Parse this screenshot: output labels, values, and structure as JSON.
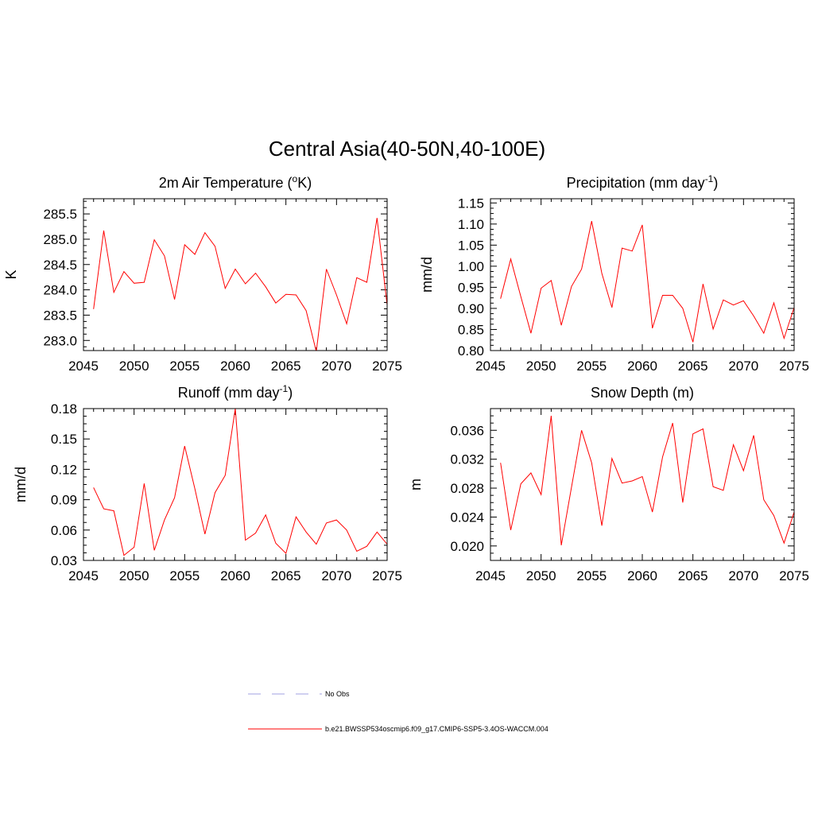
{
  "title": "Central Asia(40-50N,40-100E)",
  "colors": {
    "series": "#ff0000",
    "obs": "#a0a0e0",
    "axis": "#000000"
  },
  "legend": {
    "items": [
      {
        "label": "No Obs",
        "color": "#a0a0e0",
        "style": "dashed"
      },
      {
        "label": "b.e21.BWSSP534oscmip6.f09_g17.CMIP6-SSP5-3.4OS-WACCM.004",
        "color": "#ff0000",
        "style": "solid"
      }
    ]
  },
  "chart_data": [
    {
      "type": "line",
      "title": "2m Air Temperature (",
      "title_sup": "o",
      "title_after": "K)",
      "xlabel": "",
      "ylabel": "K",
      "xlim": [
        2045,
        2075
      ],
      "ylim": [
        282.8,
        285.8
      ],
      "xticks": [
        2045,
        2050,
        2055,
        2060,
        2065,
        2070,
        2075
      ],
      "yticks": [
        283.0,
        283.5,
        284.0,
        284.5,
        285.0,
        285.5
      ],
      "ytick_labels": [
        "283.0",
        "283.5",
        "284.0",
        "284.5",
        "285.0",
        "285.5"
      ],
      "series": [
        {
          "name": "b.e21.BWSSP534oscmip6.f09_g17.CMIP6-SSP5-3.4OS-WACCM.004",
          "x": [
            2046,
            2047,
            2048,
            2049,
            2050,
            2051,
            2052,
            2053,
            2054,
            2055,
            2056,
            2057,
            2058,
            2059,
            2060,
            2061,
            2062,
            2063,
            2064,
            2065,
            2066,
            2067,
            2068,
            2069,
            2070,
            2071,
            2072,
            2073,
            2074,
            2075
          ],
          "values": [
            283.62,
            285.17,
            283.95,
            284.36,
            284.13,
            284.15,
            284.99,
            284.67,
            283.81,
            284.89,
            284.7,
            285.13,
            284.86,
            284.03,
            284.41,
            284.12,
            284.33,
            284.06,
            283.74,
            283.91,
            283.9,
            283.59,
            282.78,
            284.41,
            283.9,
            283.33,
            284.24,
            284.15,
            285.42,
            283.7
          ]
        }
      ]
    },
    {
      "type": "line",
      "title": "Precipitation (mm day",
      "title_sup": "-1",
      "title_after": ")",
      "xlabel": "",
      "ylabel": "mm/d",
      "xlim": [
        2045,
        2075
      ],
      "ylim": [
        0.8,
        1.16
      ],
      "xticks": [
        2045,
        2050,
        2055,
        2060,
        2065,
        2070,
        2075
      ],
      "yticks": [
        0.8,
        0.85,
        0.9,
        0.95,
        1.0,
        1.05,
        1.1,
        1.15
      ],
      "ytick_labels": [
        "0.80",
        "0.85",
        "0.90",
        "0.95",
        "1.00",
        "1.05",
        "1.10",
        "1.15"
      ],
      "series": [
        {
          "name": "b.e21.BWSSP534oscmip6.f09_g17.CMIP6-SSP5-3.4OS-WACCM.004",
          "x": [
            2046,
            2047,
            2048,
            2049,
            2050,
            2051,
            2052,
            2053,
            2054,
            2055,
            2056,
            2057,
            2058,
            2059,
            2060,
            2061,
            2062,
            2063,
            2064,
            2065,
            2066,
            2067,
            2068,
            2069,
            2070,
            2071,
            2072,
            2073,
            2074,
            2075
          ],
          "values": [
            0.923,
            1.017,
            0.928,
            0.841,
            0.948,
            0.966,
            0.86,
            0.952,
            0.993,
            1.107,
            0.983,
            0.902,
            1.043,
            1.036,
            1.098,
            0.853,
            0.931,
            0.931,
            0.9,
            0.82,
            0.958,
            0.851,
            0.92,
            0.908,
            0.918,
            0.882,
            0.841,
            0.913,
            0.829,
            0.902
          ]
        }
      ]
    },
    {
      "type": "line",
      "title": "Runoff (mm day",
      "title_sup": "-1",
      "title_after": ")",
      "xlabel": "",
      "ylabel": "mm/d",
      "xlim": [
        2045,
        2075
      ],
      "ylim": [
        0.03,
        0.18
      ],
      "xticks": [
        2045,
        2050,
        2055,
        2060,
        2065,
        2070,
        2075
      ],
      "yticks": [
        0.03,
        0.06,
        0.09,
        0.12,
        0.15,
        0.18
      ],
      "ytick_labels": [
        "0.03",
        "0.06",
        "0.09",
        "0.12",
        "0.15",
        "0.18"
      ],
      "series": [
        {
          "name": "b.e21.BWSSP534oscmip6.f09_g17.CMIP6-SSP5-3.4OS-WACCM.004",
          "x": [
            2046,
            2047,
            2048,
            2049,
            2050,
            2051,
            2052,
            2053,
            2054,
            2055,
            2056,
            2057,
            2058,
            2059,
            2060,
            2061,
            2062,
            2063,
            2064,
            2065,
            2066,
            2067,
            2068,
            2069,
            2070,
            2071,
            2072,
            2073,
            2074,
            2075
          ],
          "values": [
            0.102,
            0.081,
            0.079,
            0.035,
            0.043,
            0.106,
            0.04,
            0.07,
            0.092,
            0.143,
            0.101,
            0.056,
            0.097,
            0.114,
            0.18,
            0.05,
            0.057,
            0.075,
            0.047,
            0.037,
            0.073,
            0.058,
            0.046,
            0.067,
            0.07,
            0.06,
            0.039,
            0.044,
            0.058,
            0.046
          ]
        }
      ]
    },
    {
      "type": "line",
      "title": "Snow Depth (m)",
      "title_sup": "",
      "title_after": "",
      "xlabel": "",
      "ylabel": "m",
      "xlim": [
        2045,
        2075
      ],
      "ylim": [
        0.018,
        0.039
      ],
      "xticks": [
        2045,
        2050,
        2055,
        2060,
        2065,
        2070,
        2075
      ],
      "yticks": [
        0.02,
        0.024,
        0.028,
        0.032,
        0.036
      ],
      "ytick_labels": [
        "0.020",
        "0.024",
        "0.028",
        "0.032",
        "0.036"
      ],
      "series": [
        {
          "name": "b.e21.BWSSP534oscmip6.f09_g17.CMIP6-SSP5-3.4OS-WACCM.004",
          "x": [
            2046,
            2047,
            2048,
            2049,
            2050,
            2051,
            2052,
            2053,
            2054,
            2055,
            2056,
            2057,
            2058,
            2059,
            2060,
            2061,
            2062,
            2063,
            2064,
            2065,
            2066,
            2067,
            2068,
            2069,
            2070,
            2071,
            2072,
            2073,
            2074,
            2075
          ],
          "values": [
            0.0315,
            0.0222,
            0.0286,
            0.0301,
            0.0271,
            0.038,
            0.0201,
            0.0281,
            0.036,
            0.0315,
            0.0228,
            0.0321,
            0.0287,
            0.029,
            0.0296,
            0.0247,
            0.0323,
            0.037,
            0.026,
            0.0355,
            0.0362,
            0.0282,
            0.0277,
            0.034,
            0.0304,
            0.0353,
            0.0264,
            0.0242,
            0.0204,
            0.0247
          ]
        }
      ]
    }
  ]
}
